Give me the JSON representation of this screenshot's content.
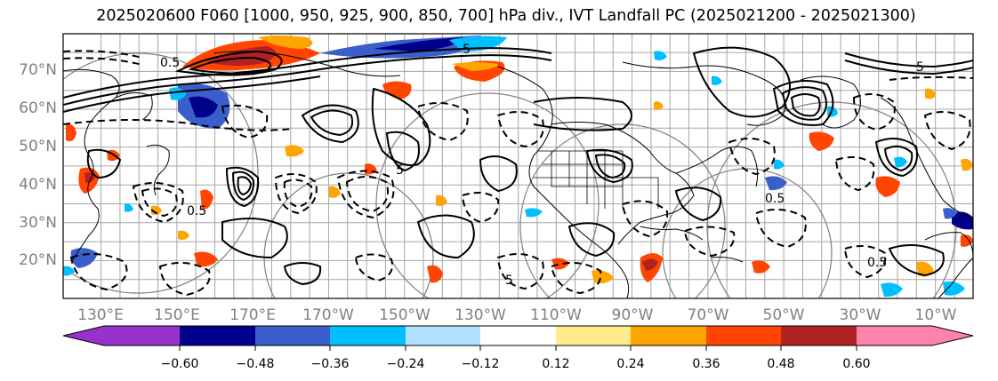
{
  "title": "2025020600 F060 [1000, 950, 925, 900, 850, 700] hPa div., IVT Landfall PC (2025021200 - 2025021300)",
  "map": {
    "lat_labels": [
      "70°N",
      "60°N",
      "50°N",
      "40°N",
      "30°N",
      "20°N"
    ],
    "lon_labels": [
      "130°E",
      "150°E",
      "170°E",
      "170°W",
      "150°W",
      "130°W",
      "110°W",
      "90°W",
      "70°W",
      "50°W",
      "30°W",
      "10°W"
    ],
    "contour_labels": [
      "0.5",
      "5",
      "0.5",
      "5",
      "0.5",
      "5",
      "0.5",
      "5"
    ],
    "gridline_color": "#808080",
    "coastline_color": "#000000"
  },
  "colorbar": {
    "ticks": [
      "−0.60",
      "−0.48",
      "−0.36",
      "−0.24",
      "−0.12",
      "0.12",
      "0.24",
      "0.36",
      "0.48",
      "0.60"
    ],
    "colors": [
      "#9932cc",
      "#00008b",
      "#3a5fcd",
      "#00bfff",
      "#b0e2ff",
      "#ffffff",
      "#ffec8b",
      "#ffa500",
      "#ff4500",
      "#b22222",
      "#ff82ab"
    ]
  }
}
